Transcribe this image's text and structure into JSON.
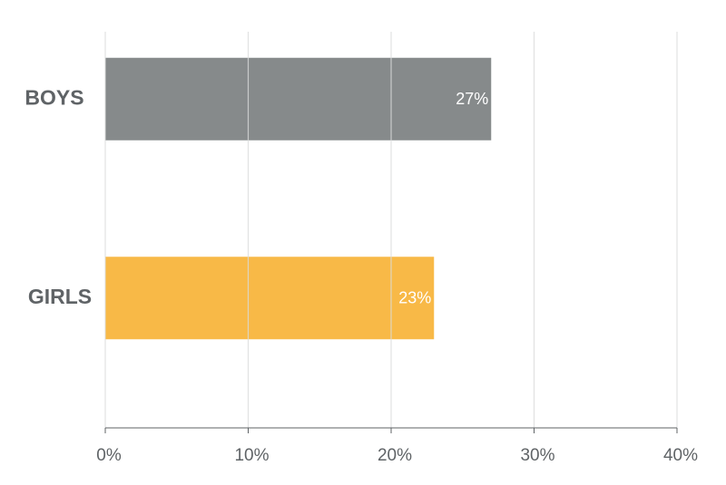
{
  "chart_data": {
    "type": "hbar",
    "categories": [
      "BOYS",
      "GIRLS"
    ],
    "values": [
      27,
      23
    ],
    "value_labels": [
      "27%",
      "23%"
    ],
    "colors": [
      "#868a8b",
      "#f8b947"
    ],
    "xlim": [
      0,
      40
    ],
    "xticks": [
      {
        "value": 0,
        "label": "0%"
      },
      {
        "value": 10,
        "label": "10%"
      },
      {
        "value": 20,
        "label": "20%"
      },
      {
        "value": 30,
        "label": "30%"
      },
      {
        "value": 40,
        "label": "40%"
      }
    ],
    "grid": true
  }
}
